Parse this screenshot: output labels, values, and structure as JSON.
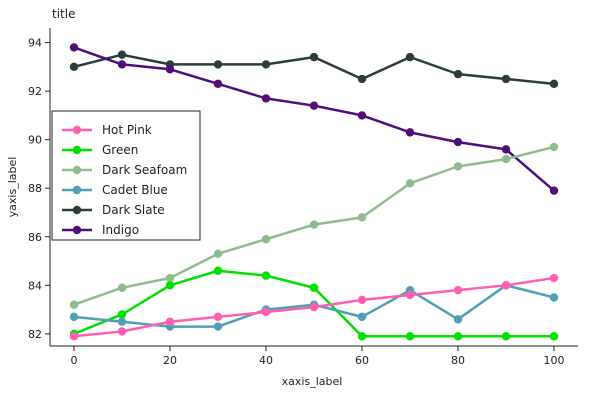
{
  "chart_data": {
    "type": "line",
    "title": "title",
    "xlabel": "xaxis_label",
    "ylabel": "yaxis_label",
    "xlim": [
      -5,
      105
    ],
    "ylim": [
      81.5,
      94.6
    ],
    "xticks": [
      0,
      20,
      40,
      60,
      80,
      100
    ],
    "yticks": [
      82,
      84,
      86,
      88,
      90,
      92,
      94
    ],
    "legend_position": "left",
    "legend_order": [
      "Hot Pink",
      "Green",
      "Dark Seafoam",
      "Cadet Blue",
      "Dark Slate",
      "Indigo"
    ],
    "series": [
      {
        "name": "Dark Slate",
        "color": "#2b3d3a",
        "x": [
          0,
          10,
          20,
          30,
          40,
          50,
          60,
          70,
          80,
          90,
          100
        ],
        "y": [
          93.0,
          93.5,
          93.1,
          93.1,
          93.1,
          93.4,
          92.5,
          93.4,
          92.7,
          92.5,
          92.3
        ]
      },
      {
        "name": "Indigo",
        "color": "#4f0f7b",
        "x": [
          0,
          10,
          20,
          30,
          40,
          50,
          60,
          70,
          80,
          90,
          100
        ],
        "y": [
          93.8,
          93.1,
          92.9,
          92.3,
          91.7,
          91.4,
          91.0,
          90.3,
          89.9,
          89.6,
          87.9
        ]
      },
      {
        "name": "Dark Seafoam",
        "color": "#8fbc8f",
        "x": [
          0,
          10,
          20,
          30,
          40,
          50,
          60,
          70,
          80,
          90,
          100
        ],
        "y": [
          83.2,
          83.9,
          84.3,
          85.3,
          85.9,
          86.5,
          86.8,
          88.2,
          88.9,
          89.2,
          89.7
        ]
      },
      {
        "name": "Green",
        "color": "#00e000",
        "x": [
          0,
          10,
          20,
          30,
          40,
          50,
          60,
          70,
          80,
          90,
          100
        ],
        "y": [
          82.0,
          82.8,
          84.0,
          84.6,
          84.4,
          83.9,
          81.9,
          81.9,
          81.9,
          81.9,
          81.9
        ]
      },
      {
        "name": "Cadet Blue",
        "color": "#4fa0b4",
        "x": [
          0,
          10,
          20,
          30,
          40,
          50,
          60,
          70,
          80,
          90,
          100
        ],
        "y": [
          82.7,
          82.5,
          82.3,
          82.3,
          83.0,
          83.2,
          82.7,
          83.8,
          82.6,
          84.0,
          83.5
        ]
      },
      {
        "name": "Hot Pink",
        "color": "#ff5fb0",
        "x": [
          0,
          10,
          20,
          30,
          40,
          50,
          60,
          70,
          80,
          90,
          100
        ],
        "y": [
          81.9,
          82.1,
          82.5,
          82.7,
          82.9,
          83.1,
          83.4,
          83.6,
          83.8,
          84.0,
          84.3
        ]
      }
    ]
  }
}
